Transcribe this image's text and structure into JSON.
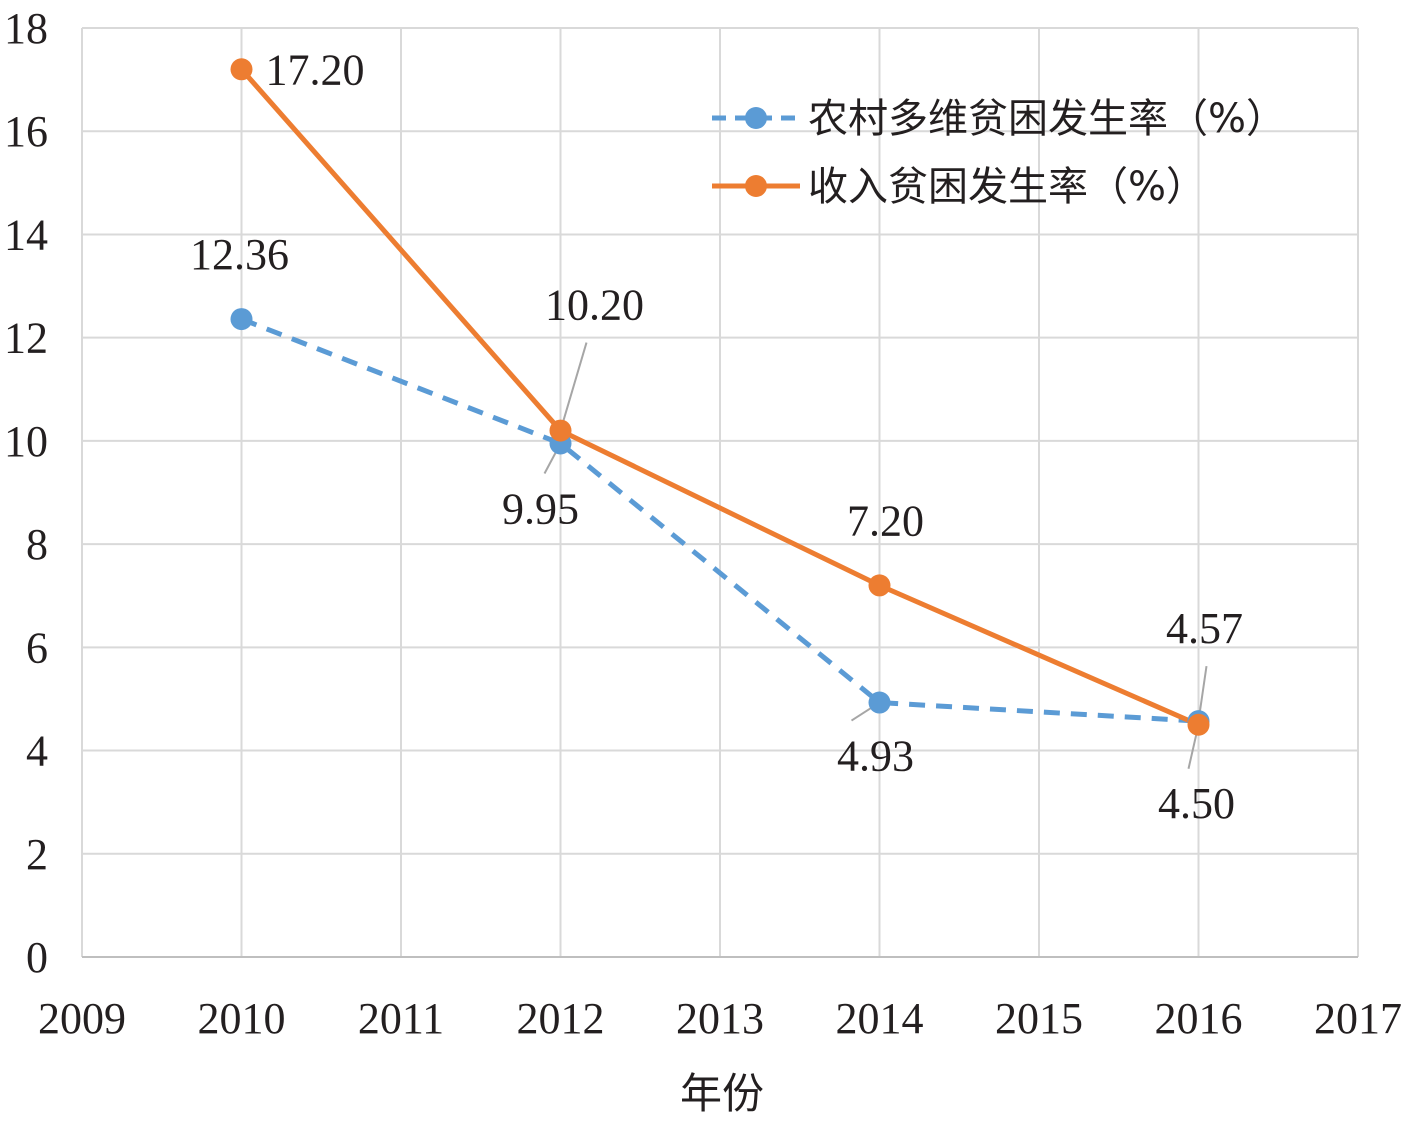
{
  "chart_data": {
    "type": "line",
    "title": "",
    "xlabel": "年份",
    "ylabel": "",
    "xlim": [
      2009,
      2017
    ],
    "ylim": [
      0,
      18
    ],
    "x_ticks": [
      2009,
      2010,
      2011,
      2012,
      2013,
      2014,
      2015,
      2016,
      2017
    ],
    "y_ticks": [
      0,
      2,
      4,
      6,
      8,
      10,
      12,
      14,
      16,
      18
    ],
    "grid": true,
    "legend_position": "top-right",
    "series": [
      {
        "name": "农村多维贫困发生率（%）",
        "color": "#5b9bd5",
        "line_style": "dashed",
        "x": [
          2010,
          2012,
          2014,
          2016
        ],
        "values": [
          12.36,
          9.95,
          4.93,
          4.57
        ],
        "labels": [
          "12.36",
          "9.95",
          "4.93",
          "4.57"
        ]
      },
      {
        "name": "收入贫困发生率（%）",
        "color": "#ed7d31",
        "line_style": "solid",
        "x": [
          2010,
          2012,
          2014,
          2016
        ],
        "values": [
          17.2,
          10.2,
          7.2,
          4.5
        ],
        "labels": [
          "17.20",
          "10.20",
          "7.20",
          "4.50"
        ]
      }
    ]
  }
}
